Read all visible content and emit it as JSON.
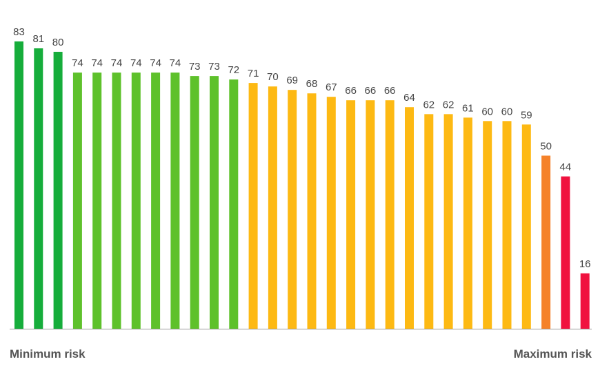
{
  "chart_data": {
    "type": "bar",
    "values": [
      83,
      81,
      80,
      74,
      74,
      74,
      74,
      74,
      74,
      73,
      73,
      72,
      71,
      70,
      69,
      68,
      67,
      66,
      66,
      66,
      64,
      62,
      62,
      61,
      60,
      60,
      59,
      50,
      44,
      16
    ],
    "bar_colors": [
      "#16ad3b",
      "#16ad3b",
      "#16ad3b",
      "#5ec12b",
      "#5ec12b",
      "#5ec12b",
      "#5ec12b",
      "#5ec12b",
      "#5ec12b",
      "#5ec12b",
      "#5ec12b",
      "#5ec12b",
      "#fdb913",
      "#fdb913",
      "#fdb913",
      "#fdb913",
      "#fdb913",
      "#fdb913",
      "#fdb913",
      "#fdb913",
      "#fdb913",
      "#fdb913",
      "#fdb913",
      "#fdb913",
      "#fdb913",
      "#fdb913",
      "#fdb913",
      "#f5822a",
      "#f0123f",
      "#f0123f"
    ],
    "ylim": [
      0,
      100
    ],
    "grid": false,
    "data_labels": true,
    "axis_color": "#999999",
    "x_start_label": "Minimum risk",
    "x_end_label": "Maximum risk"
  }
}
